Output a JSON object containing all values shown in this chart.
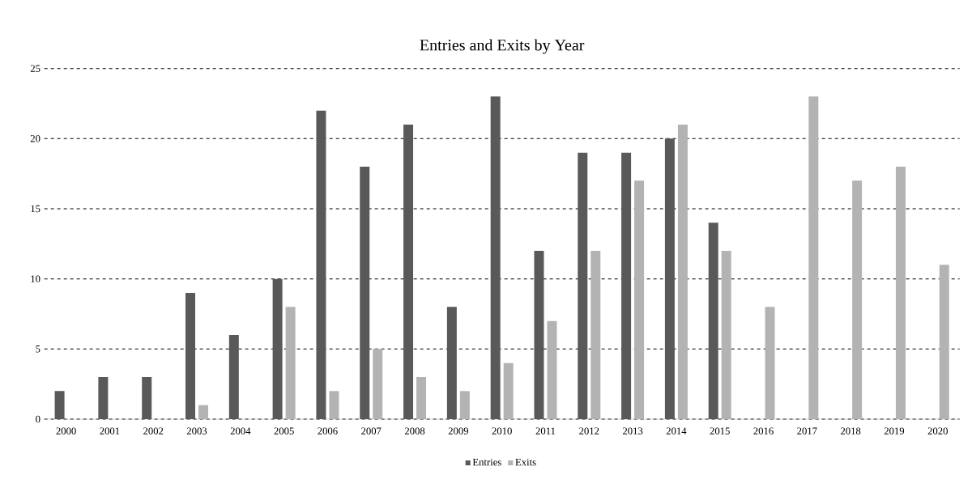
{
  "chart_data": {
    "type": "bar",
    "title": "Entries and Exits by Year",
    "categories": [
      "2000",
      "2001",
      "2002",
      "2003",
      "2004",
      "2005",
      "2006",
      "2007",
      "2008",
      "2009",
      "2010",
      "2011",
      "2012",
      "2013",
      "2014",
      "2015",
      "2016",
      "2017",
      "2018",
      "2019",
      "2020"
    ],
    "series": [
      {
        "name": "Entries",
        "color": "#595959",
        "values": [
          2,
          3,
          3,
          9,
          6,
          10,
          22,
          18,
          21,
          8,
          23,
          12,
          19,
          19,
          20,
          14,
          null,
          null,
          null,
          null,
          null
        ]
      },
      {
        "name": "Exits",
        "color": "#b3b3b3",
        "values": [
          null,
          null,
          null,
          1,
          null,
          8,
          2,
          5,
          3,
          2,
          4,
          7,
          12,
          17,
          21,
          12,
          8,
          23,
          17,
          18,
          11
        ]
      }
    ],
    "ylim": [
      0,
      25
    ],
    "yticks": [
      0,
      5,
      10,
      15,
      20,
      25
    ],
    "grid": "y",
    "legend": "bottom"
  }
}
